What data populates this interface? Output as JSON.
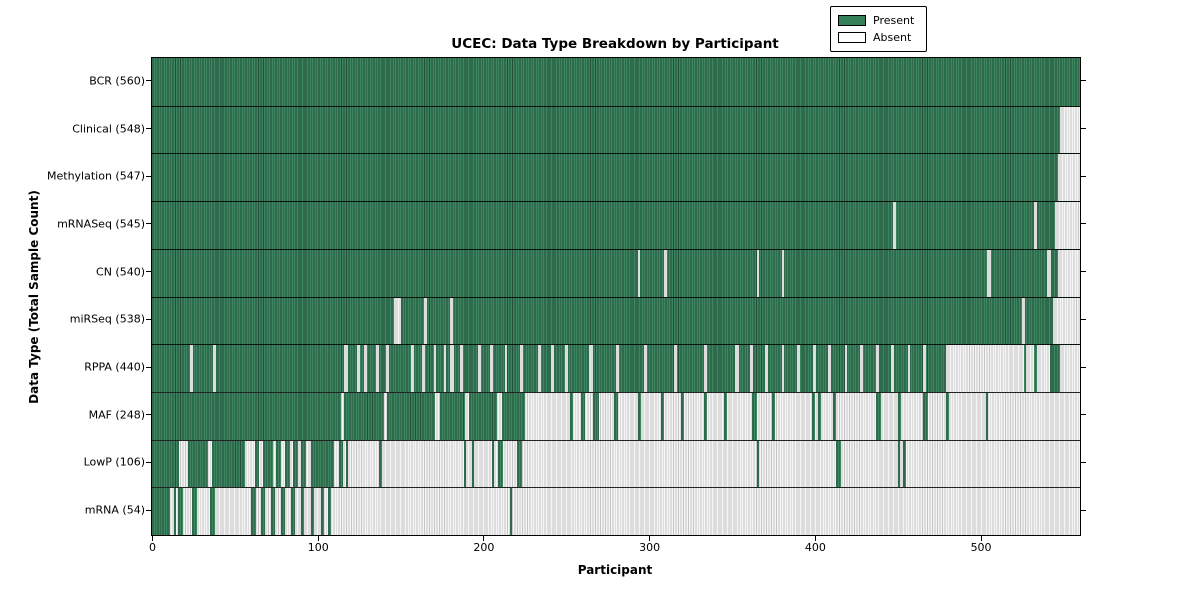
{
  "title": "UCEC: Data Type Breakdown by Participant",
  "legend": {
    "present_label": "Present",
    "absent_label": "Absent"
  },
  "colors": {
    "present": "#338058",
    "absent": "#f0f0f0",
    "border": "#000000"
  },
  "chart_data": {
    "type": "heatmap",
    "title": "UCEC: Data Type Breakdown by Participant",
    "xlabel": "Participant",
    "ylabel": "Data Type (Total Sample Count)",
    "xlim": [
      0,
      560
    ],
    "xticks": [
      0,
      100,
      200,
      300,
      400,
      500
    ],
    "grid": false,
    "legend_position": "upper right",
    "legend_entries": [
      "Present",
      "Absent"
    ],
    "value_encoding": "green = data type present for participant, light gray = absent; participants sorted by data completeness",
    "rows": [
      {
        "label": "BCR",
        "total": 560,
        "display": "BCR (560)",
        "base": "present",
        "segments": []
      },
      {
        "label": "Clinical",
        "total": 548,
        "display": "Clinical (548)",
        "base": "present",
        "segments": [
          [
            548,
            560
          ]
        ]
      },
      {
        "label": "Methylation",
        "total": 547,
        "display": "Methylation (547)",
        "base": "present",
        "segments": [
          [
            547,
            560
          ]
        ]
      },
      {
        "label": "mRNASeq",
        "total": 545,
        "display": "mRNASeq (545)",
        "base": "present",
        "segments": [
          [
            447,
            449
          ],
          [
            532,
            534
          ],
          [
            545,
            560
          ]
        ]
      },
      {
        "label": "CN",
        "total": 540,
        "display": "CN (540)",
        "base": "present",
        "segments": [
          [
            293,
            294.5
          ],
          [
            309,
            310.5
          ],
          [
            365,
            366.5
          ],
          [
            380,
            381.5
          ],
          [
            504,
            506.5
          ],
          [
            540,
            542.5
          ],
          [
            547,
            560
          ]
        ]
      },
      {
        "label": "miRSeq",
        "total": 538,
        "display": "miRSeq (538)",
        "base": "present",
        "segments": [
          [
            146,
            150
          ],
          [
            164,
            166
          ],
          [
            180,
            181.5
          ],
          [
            525,
            527
          ],
          [
            544,
            560
          ]
        ]
      },
      {
        "label": "RPPA",
        "total": 440,
        "display": "RPPA (440)",
        "base": "present",
        "segments": [
          [
            23,
            24.5
          ],
          [
            37,
            38.5
          ],
          [
            116,
            118
          ],
          [
            124,
            125.5
          ],
          [
            128,
            129.5
          ],
          [
            135,
            137
          ],
          [
            141,
            143
          ],
          [
            156,
            158
          ],
          [
            163,
            165
          ],
          [
            170,
            171.5
          ],
          [
            176,
            177.5
          ],
          [
            180,
            182
          ],
          [
            186,
            187.5
          ],
          [
            197,
            198.5
          ],
          [
            204,
            206
          ],
          [
            213,
            214.5
          ],
          [
            222,
            224
          ],
          [
            233,
            234.5
          ],
          [
            241,
            242.5
          ],
          [
            249,
            251
          ],
          [
            264,
            266
          ],
          [
            280,
            282
          ],
          [
            297,
            299
          ],
          [
            315,
            317
          ],
          [
            333,
            335
          ],
          [
            352,
            354
          ],
          [
            361,
            362.5
          ],
          [
            370,
            372
          ],
          [
            380,
            381.5
          ],
          [
            389,
            391
          ],
          [
            399,
            400.5
          ],
          [
            408,
            410
          ],
          [
            418,
            419.5
          ],
          [
            427,
            429
          ],
          [
            437,
            438.5
          ],
          [
            446,
            448
          ],
          [
            456,
            457.5
          ],
          [
            465,
            467
          ],
          [
            479,
            526
          ],
          [
            527.5,
            532
          ],
          [
            534,
            542
          ],
          [
            548,
            560
          ]
        ]
      },
      {
        "label": "MAF",
        "total": 248,
        "display": "MAF (248)",
        "base": "absent",
        "segments": [
          [
            0,
            114
          ],
          [
            116,
            140
          ],
          [
            142,
            171
          ],
          [
            174,
            189
          ],
          [
            191,
            208
          ],
          [
            211,
            225
          ],
          [
            252,
            254
          ],
          [
            259,
            261
          ],
          [
            266,
            270
          ],
          [
            279,
            281
          ],
          [
            293,
            295
          ],
          [
            307,
            309
          ],
          [
            319,
            321
          ],
          [
            333,
            335
          ],
          [
            345,
            347
          ],
          [
            362,
            365
          ],
          [
            374,
            376
          ],
          [
            398,
            400
          ],
          [
            402,
            403.5
          ],
          [
            411,
            413
          ],
          [
            437,
            440
          ],
          [
            450,
            452
          ],
          [
            465,
            468
          ],
          [
            479,
            481
          ],
          [
            503,
            504.5
          ]
        ]
      },
      {
        "label": "LowP",
        "total": 106,
        "display": "LowP (106)",
        "base": "absent",
        "segments": [
          [
            0,
            16
          ],
          [
            22,
            34
          ],
          [
            36,
            56
          ],
          [
            62,
            64.5
          ],
          [
            67,
            73
          ],
          [
            75,
            78
          ],
          [
            80,
            83
          ],
          [
            85,
            88
          ],
          [
            90,
            93
          ],
          [
            96,
            110
          ],
          [
            113,
            115
          ],
          [
            117,
            118.5
          ],
          [
            137,
            138.5
          ],
          [
            188,
            189.5
          ],
          [
            193,
            194.5
          ],
          [
            205,
            206.5
          ],
          [
            209,
            212
          ],
          [
            220,
            223
          ],
          [
            365,
            366.5
          ],
          [
            413,
            415.5
          ],
          [
            450,
            451.5
          ],
          [
            453,
            455
          ]
        ]
      },
      {
        "label": "mRNA",
        "total": 54,
        "display": "mRNA (54)",
        "base": "absent",
        "segments": [
          [
            0,
            11
          ],
          [
            13,
            14.5
          ],
          [
            15.5,
            19
          ],
          [
            24,
            27
          ],
          [
            35,
            38
          ],
          [
            60,
            63
          ],
          [
            66,
            68
          ],
          [
            72,
            74
          ],
          [
            78,
            80
          ],
          [
            84,
            86
          ],
          [
            90,
            92
          ],
          [
            96,
            98
          ],
          [
            102,
            104
          ],
          [
            106,
            108
          ],
          [
            216,
            217.5
          ]
        ]
      }
    ]
  }
}
